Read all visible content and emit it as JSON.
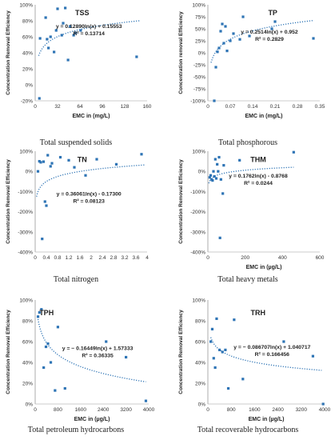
{
  "chart_data": [
    {
      "type": "scatter",
      "title": "TSS",
      "caption": "Total suspended solids",
      "xlabel": "EMC in (mg/L)",
      "ylabel": "Concentration Removal Efficiency",
      "xlim": [
        0,
        160
      ],
      "ylim": [
        -20,
        100
      ],
      "xticks": [
        "0",
        "32",
        "64",
        "96",
        "128",
        "160"
      ],
      "yticks": [
        "-20%",
        "0%",
        "20%",
        "40%",
        "60%",
        "80%",
        "100%"
      ],
      "equation": "y = 0.12890ln(x) + 0.15553",
      "r2": "R² = 0.13714",
      "trend": {
        "a": 0.1289,
        "b": 0.15553,
        "xmin": 5,
        "xmax": 150,
        "scale": 100
      },
      "points": [
        [
          6,
          -17
        ],
        [
          7,
          58
        ],
        [
          15,
          84
        ],
        [
          17,
          57
        ],
        [
          19,
          46
        ],
        [
          22,
          60
        ],
        [
          27,
          41
        ],
        [
          30,
          68
        ],
        [
          32,
          95
        ],
        [
          38,
          62
        ],
        [
          40,
          77
        ],
        [
          43,
          96
        ],
        [
          47,
          31
        ],
        [
          50,
          73
        ],
        [
          55,
          62
        ],
        [
          58,
          65
        ],
        [
          65,
          68
        ],
        [
          145,
          35
        ]
      ]
    },
    {
      "type": "scatter",
      "title": "TP",
      "caption": "Total phosphorous",
      "xlabel": "EMC in (mg/L)",
      "ylabel": "Concentration removal Efficiency",
      "xlim": [
        0,
        0.35
      ],
      "ylim": [
        -100,
        100
      ],
      "xticks": [
        "0",
        "0.07",
        "0.14",
        "0.21",
        "0.28",
        "0.35"
      ],
      "yticks": [
        "-100%",
        "-75%",
        "-50%",
        "-25%",
        "0%",
        "25%",
        "50%",
        "75%",
        "100%"
      ],
      "equation": "y = 0.2514ln(x) + 0.952",
      "r2": "R² = 0.2829",
      "trend": {
        "a": 0.2514,
        "b": 0.952,
        "xmin": 0.01,
        "xmax": 0.33,
        "scale": 100
      },
      "points": [
        [
          0.02,
          -100
        ],
        [
          0.025,
          -30
        ],
        [
          0.03,
          2
        ],
        [
          0.035,
          10
        ],
        [
          0.04,
          45
        ],
        [
          0.045,
          60
        ],
        [
          0.05,
          20
        ],
        [
          0.055,
          55
        ],
        [
          0.06,
          4
        ],
        [
          0.07,
          25
        ],
        [
          0.08,
          40
        ],
        [
          0.1,
          28
        ],
        [
          0.11,
          75
        ],
        [
          0.13,
          35
        ],
        [
          0.2,
          50
        ],
        [
          0.21,
          65
        ],
        [
          0.33,
          30
        ]
      ]
    },
    {
      "type": "scatter",
      "title": "TN",
      "caption": "Total nitrogen",
      "xlabel": "",
      "ylabel": "Concentration Removal Efficiency",
      "xlim": [
        0,
        4
      ],
      "ylim": [
        -400,
        100
      ],
      "xticks": [
        "0",
        "0.4",
        "0.8",
        "1.2",
        "1.6",
        "2",
        "2.4",
        "2.8",
        "3.2",
        "3.6",
        "4"
      ],
      "yticks": [
        "-400%",
        "-300%",
        "-200%",
        "-100%",
        "0%",
        "100%"
      ],
      "equation": "y = 0.36061ln(x) - 0.17300",
      "r2": "R² = 0.08123",
      "trend": {
        "a": 0.36061,
        "b": -0.173,
        "xmin": 0.05,
        "xmax": 3.9,
        "scale": 100
      },
      "points": [
        [
          0.1,
          0
        ],
        [
          0.15,
          50
        ],
        [
          0.2,
          45
        ],
        [
          0.25,
          -335
        ],
        [
          0.3,
          48
        ],
        [
          0.35,
          -150
        ],
        [
          0.4,
          -170
        ],
        [
          0.45,
          80
        ],
        [
          0.55,
          25
        ],
        [
          0.6,
          40
        ],
        [
          0.9,
          70
        ],
        [
          1.2,
          55
        ],
        [
          1.4,
          20
        ],
        [
          1.8,
          -20
        ],
        [
          2.2,
          60
        ],
        [
          2.9,
          35
        ],
        [
          3.8,
          85
        ]
      ]
    },
    {
      "type": "scatter",
      "title": "THM",
      "caption": "Total heavy metals",
      "xlabel": "EMC in (µg/L)",
      "ylabel": "Concentration Removal Efficiency",
      "xlim": [
        0,
        600
      ],
      "ylim": [
        -400,
        100
      ],
      "xticks": [
        "0",
        "200",
        "400",
        "600"
      ],
      "yticks": [
        "-400%",
        "-300%",
        "-200%",
        "-100%",
        "0%",
        "100%"
      ],
      "equation": "y = 0.1762ln(x) - 0.8768",
      "r2": "R² = 0.0244",
      "trend": {
        "a": 0.1762,
        "b": -0.8768,
        "xmin": 5,
        "xmax": 460,
        "scale": 100
      },
      "points": [
        [
          10,
          -30
        ],
        [
          15,
          -20
        ],
        [
          20,
          -40
        ],
        [
          25,
          -45
        ],
        [
          30,
          0
        ],
        [
          35,
          -25
        ],
        [
          40,
          60
        ],
        [
          45,
          -35
        ],
        [
          50,
          35
        ],
        [
          55,
          0
        ],
        [
          60,
          70
        ],
        [
          65,
          -330
        ],
        [
          70,
          -40
        ],
        [
          80,
          -110
        ],
        [
          85,
          30
        ],
        [
          170,
          55
        ],
        [
          460,
          95
        ]
      ]
    },
    {
      "type": "scatter",
      "title": "TPH",
      "caption": "Total petroleum hydrocarbons",
      "xlabel": "EMC in (µg/L)",
      "ylabel": "Concentration Removal Efficiency",
      "xlim": [
        0,
        4000
      ],
      "ylim": [
        0,
        100
      ],
      "xticks": [
        "0",
        "800",
        "1600",
        "2400",
        "3200",
        "4000"
      ],
      "yticks": [
        "0%",
        "20%",
        "40%",
        "60%",
        "80%",
        "100%"
      ],
      "equation": "y = − 0.16449ln(x) + 1.57333",
      "r2": "R² = 0.36335",
      "trend": {
        "a": -0.16449,
        "b": 1.57333,
        "xmin": 100,
        "xmax": 3900,
        "scale": 100
      },
      "points": [
        [
          100,
          84
        ],
        [
          150,
          88
        ],
        [
          220,
          91
        ],
        [
          300,
          35
        ],
        [
          380,
          55
        ],
        [
          450,
          58
        ],
        [
          550,
          40
        ],
        [
          700,
          13
        ],
        [
          800,
          74
        ],
        [
          1050,
          15
        ],
        [
          2500,
          60
        ],
        [
          3200,
          45
        ],
        [
          3900,
          3
        ]
      ]
    },
    {
      "type": "scatter",
      "title": "TRH",
      "caption": "Total recoverable hydrocarbons",
      "xlabel": "EMC in (µg/L)",
      "ylabel": "Concentration Removal Efficiency",
      "xlim": [
        0,
        4000
      ],
      "ylim": [
        0,
        100
      ],
      "xticks": [
        "0",
        "800",
        "1600",
        "2400",
        "3200",
        "4000"
      ],
      "yticks": [
        "0%",
        "20%",
        "40%",
        "60%",
        "80%",
        "100%"
      ],
      "equation": "y = − 0.086707ln(x) + 1.040717",
      "r2": "R² = 0.166456",
      "trend": {
        "a": -0.086707,
        "b": 1.040717,
        "xmin": 100,
        "xmax": 3900,
        "scale": 100
      },
      "points": [
        [
          100,
          60
        ],
        [
          150,
          72
        ],
        [
          200,
          44
        ],
        [
          250,
          35
        ],
        [
          300,
          82
        ],
        [
          400,
          52
        ],
        [
          500,
          50
        ],
        [
          600,
          52
        ],
        [
          700,
          15
        ],
        [
          900,
          81
        ],
        [
          1200,
          24
        ],
        [
          2600,
          60
        ],
        [
          3600,
          46
        ],
        [
          3950,
          0
        ]
      ]
    }
  ]
}
